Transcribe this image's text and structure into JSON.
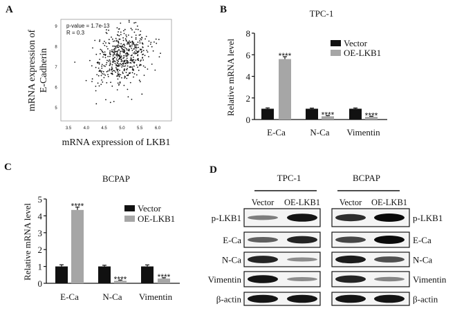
{
  "panels": {
    "A": "A",
    "B": "B",
    "C": "C",
    "D": "D"
  },
  "colors": {
    "vector": "#111111",
    "oe": "#a6a6a6",
    "points": "#111111",
    "blot_band": "#0a0a0a"
  },
  "chart_data": [
    {
      "type": "scatter",
      "panel": "A",
      "xlabel": "mRNA expression of LKB1",
      "ylabel_lines": [
        "mRNA expression of",
        "E-Cadherin"
      ],
      "annotations": [
        "p-value = 1.7e-13",
        "R = 0.3"
      ],
      "xlim": [
        3.4,
        6.3
      ],
      "ylim": [
        4.6,
        9.3
      ],
      "xticks": [
        "3.5",
        "4.0",
        "4.5",
        "5.0",
        "5.5",
        "6.0"
      ],
      "yticks": [
        "5",
        "6",
        "7",
        "8",
        "9"
      ],
      "point_cloud": {
        "n": 520,
        "x_mean": 5.0,
        "x_sd": 0.38,
        "y_mean": 7.5,
        "y_sd": 0.7,
        "r": 0.3
      },
      "grid": false
    },
    {
      "type": "bar",
      "panel": "B",
      "title": "TPC-1",
      "ylabel": "Relative mRNA level",
      "ylim": [
        0,
        8
      ],
      "yticks": [
        "0",
        "2",
        "4",
        "6",
        "8"
      ],
      "categories": [
        "E-Ca",
        "N-Ca",
        "Vimentin"
      ],
      "series": [
        {
          "name": "Vector",
          "values": [
            1.0,
            1.0,
            1.0
          ],
          "errors": [
            0.08,
            0.06,
            0.07
          ]
        },
        {
          "name": "OE-LKB1",
          "values": [
            5.6,
            0.3,
            0.25
          ],
          "errors": [
            0.22,
            0.06,
            0.05
          ]
        }
      ],
      "significance": [
        "****",
        "****",
        "****"
      ],
      "legend": "top-right"
    },
    {
      "type": "bar",
      "panel": "C",
      "title": "BCPAP",
      "ylabel": "Relative mRNA level",
      "ylim": [
        0,
        5
      ],
      "yticks": [
        "0",
        "1",
        "2",
        "3",
        "4",
        "5"
      ],
      "categories": [
        "E-Ca",
        "N-Ca",
        "Vimentin"
      ],
      "series": [
        {
          "name": "Vector",
          "values": [
            1.0,
            1.0,
            1.0
          ],
          "errors": [
            0.1,
            0.07,
            0.09
          ]
        },
        {
          "name": "OE-LKB1",
          "values": [
            4.35,
            0.15,
            0.28
          ],
          "errors": [
            0.17,
            0.04,
            0.05
          ]
        }
      ],
      "significance": [
        "****",
        "****",
        "****"
      ],
      "legend": "top-right"
    }
  ],
  "western": {
    "cell_lines": [
      {
        "name": "TPC-1",
        "lanes": [
          "Vector",
          "OE-LKB1"
        ],
        "intensity": [
          [
            0.35,
            0.95
          ],
          [
            0.5,
            0.85
          ],
          [
            0.85,
            0.25
          ],
          [
            0.95,
            0.25
          ],
          [
            0.95,
            0.95
          ]
        ]
      },
      {
        "name": "BCPAP",
        "lanes": [
          "Vector",
          "OE-LKB1"
        ],
        "intensity": [
          [
            0.8,
            1.0
          ],
          [
            0.65,
            1.0
          ],
          [
            0.9,
            0.6
          ],
          [
            0.85,
            0.3
          ],
          [
            0.95,
            0.95
          ]
        ]
      }
    ],
    "proteins": [
      "p-LKB1",
      "E-Ca",
      "N-Ca",
      "Vimentin",
      "β-actin"
    ]
  }
}
